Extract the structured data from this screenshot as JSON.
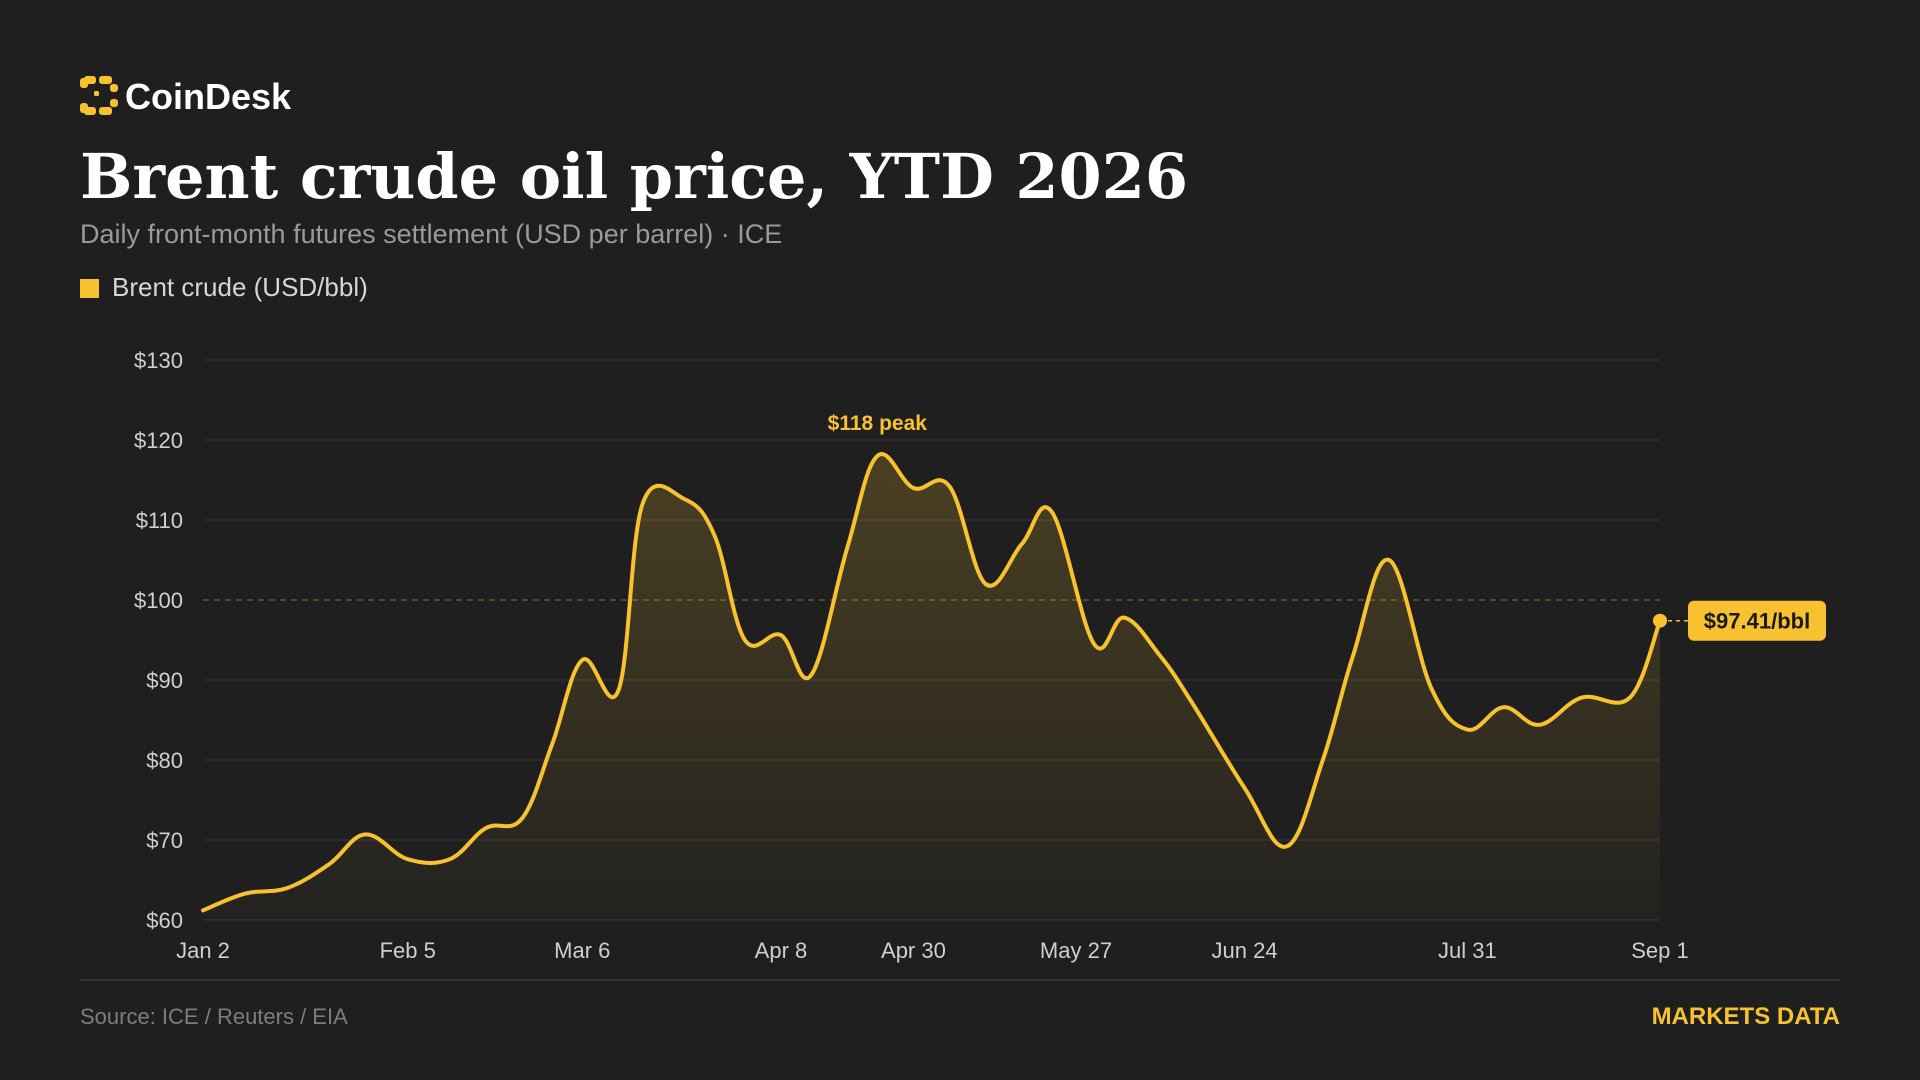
{
  "brand": {
    "name": "CoinDesk",
    "logo_icon": "coindesk-logo-icon",
    "accent_color": "#f7c12f"
  },
  "header": {
    "title": "Brent crude oil price, YTD 2026",
    "subtitle": "Daily front-month futures settlement (USD per barrel) · ICE"
  },
  "footer": {
    "source": "Source: ICE / Reuters / EIA",
    "badge": "MARKETS DATA"
  },
  "colors": {
    "background": "#1f1f1f",
    "line": "#f7c12f",
    "grid": "#333333",
    "axis_text": "#cfcfcf",
    "muted_text": "#8a8a8a",
    "reference_line": "#5a5a38"
  },
  "chart_data": {
    "type": "area",
    "title": "Brent crude oil price, YTD 2026",
    "subtitle": "Daily front-month futures settlement (USD per barrel) · ICE",
    "xlabel": "",
    "ylabel": "",
    "legend": {
      "position": "top-left",
      "items": [
        "Brent crude (USD/bbl)"
      ]
    },
    "grid": true,
    "ylim": [
      60,
      130
    ],
    "y_ticks": [
      60,
      70,
      80,
      90,
      100,
      110,
      120,
      130
    ],
    "y_tick_labels": [
      "$60",
      "$70",
      "$80",
      "$90",
      "$100",
      "$110",
      "$120",
      "$130"
    ],
    "x_ticks": [
      "Jan 2",
      "Feb 5",
      "Mar 6",
      "Apr 8",
      "Apr 30",
      "May 27",
      "Jun 24",
      "Jul 31",
      "Sep 1"
    ],
    "reference_line": {
      "y": 100,
      "style": "dashed"
    },
    "series": [
      {
        "name": "Brent crude (USD/bbl)",
        "color": "#f7c12f",
        "points": [
          {
            "x": "Jan 2",
            "y": 61.2
          },
          {
            "x": "Jan 9",
            "y": 63.3
          },
          {
            "x": "Jan 16",
            "y": 64.0
          },
          {
            "x": "Jan 23",
            "y": 67.0
          },
          {
            "x": "Jan 29",
            "y": 70.7
          },
          {
            "x": "Feb 5",
            "y": 67.6
          },
          {
            "x": "Feb 12",
            "y": 67.6
          },
          {
            "x": "Feb 18",
            "y": 71.5
          },
          {
            "x": "Feb 24",
            "y": 72.7
          },
          {
            "x": "Mar 1",
            "y": 82.0
          },
          {
            "x": "Mar 6",
            "y": 92.5
          },
          {
            "x": "Mar 12",
            "y": 88.7
          },
          {
            "x": "Mar 16",
            "y": 112.0
          },
          {
            "x": "Mar 23",
            "y": 112.6
          },
          {
            "x": "Mar 28",
            "y": 108.0
          },
          {
            "x": "Apr 2",
            "y": 95.0
          },
          {
            "x": "Apr 8",
            "y": 95.6
          },
          {
            "x": "Apr 13",
            "y": 90.6
          },
          {
            "x": "Apr 19",
            "y": 106.5
          },
          {
            "x": "Apr 24",
            "y": 118.0
          },
          {
            "x": "Apr 30",
            "y": 114.0
          },
          {
            "x": "May 6",
            "y": 114.2
          },
          {
            "x": "May 12",
            "y": 102.0
          },
          {
            "x": "May 18",
            "y": 107.0
          },
          {
            "x": "May 23",
            "y": 111.0
          },
          {
            "x": "May 30",
            "y": 94.5
          },
          {
            "x": "Jun 4",
            "y": 97.8
          },
          {
            "x": "Jun 10",
            "y": 93.0
          },
          {
            "x": "Jun 15",
            "y": 87.5
          },
          {
            "x": "Jun 24",
            "y": 76.5
          },
          {
            "x": "Jul 1",
            "y": 69.2
          },
          {
            "x": "Jul 7",
            "y": 80.0
          },
          {
            "x": "Jul 12",
            "y": 93.0
          },
          {
            "x": "Jul 18",
            "y": 105.0
          },
          {
            "x": "Jul 25",
            "y": 89.0
          },
          {
            "x": "Jul 31",
            "y": 83.8
          },
          {
            "x": "Aug 6",
            "y": 86.6
          },
          {
            "x": "Aug 12",
            "y": 84.4
          },
          {
            "x": "Aug 19",
            "y": 87.8
          },
          {
            "x": "Aug 27",
            "y": 87.8
          },
          {
            "x": "Sep 1",
            "y": 97.41
          }
        ]
      }
    ],
    "annotations": [
      {
        "text": "$118 peak",
        "x": "Apr 24",
        "y": 118.0
      },
      {
        "text": "$97.41/bbl",
        "x": "Sep 1",
        "y": 97.41,
        "style": "badge"
      }
    ]
  }
}
